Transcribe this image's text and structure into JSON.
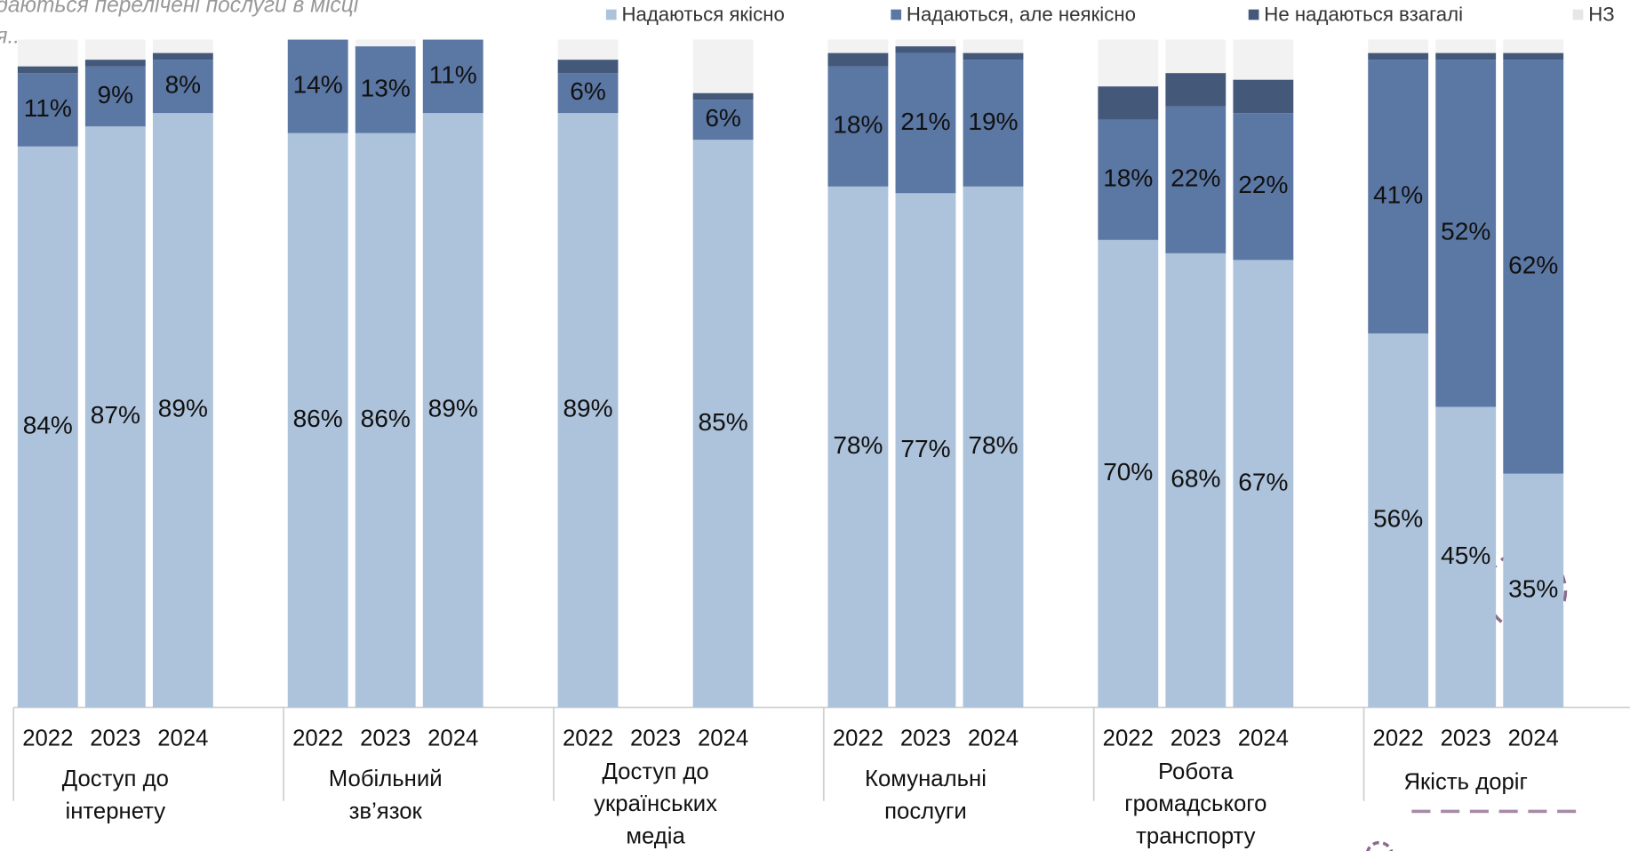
{
  "chart_data": {
    "type": "stacked-bar",
    "subtitle_lines": [
      "даються перелічені послуги в місці",
      "я..."
    ],
    "groups": [
      {
        "label_lines": [
          "Доступ до",
          "інтернету"
        ],
        "categories": [
          "2022",
          "2023",
          "2024"
        ]
      },
      {
        "label_lines": [
          "Мобільний",
          "зв’язок"
        ],
        "categories": [
          "2022",
          "2023",
          "2024"
        ]
      },
      {
        "label_lines": [
          "Доступ до",
          "українських",
          "медіа"
        ],
        "categories": [
          "2022",
          "2023",
          "2024"
        ]
      },
      {
        "label_lines": [
          "Комунальні",
          "послуги"
        ],
        "categories": [
          "2022",
          "2023",
          "2024"
        ]
      },
      {
        "label_lines": [
          "Робота",
          "громадського",
          "транспорту"
        ],
        "categories": [
          "2022",
          "2023",
          "2024"
        ]
      },
      {
        "label_lines": [
          "Якість доріг"
        ],
        "categories": [
          "2022",
          "2023",
          "2024"
        ]
      }
    ],
    "ylim": [
      0,
      100
    ],
    "series": [
      {
        "name": "Надаються якісно",
        "color": "#adc2db",
        "values": [
          84,
          87,
          89,
          86,
          86,
          89,
          89,
          null,
          85,
          78,
          77,
          78,
          70,
          68,
          67,
          56,
          45,
          35
        ],
        "value_labels": [
          "84%",
          "87%",
          "89%",
          "86%",
          "86%",
          "89%",
          "89%",
          null,
          "85%",
          "78%",
          "77%",
          "78%",
          "70%",
          "68%",
          "67%",
          "56%",
          "45%",
          "35%"
        ]
      },
      {
        "name": "Надаються, але неякісно",
        "color": "#5b77a3",
        "values": [
          11,
          9,
          8,
          14,
          13,
          11,
          6,
          null,
          6,
          18,
          21,
          19,
          18,
          22,
          22,
          41,
          52,
          62
        ],
        "value_labels": [
          "11%",
          "9%",
          "8%",
          "14%",
          "13%",
          "11%",
          "6%",
          null,
          "6%",
          "18%",
          "21%",
          "19%",
          "18%",
          "22%",
          "22%",
          "41%",
          "52%",
          "62%"
        ]
      },
      {
        "name": "Не надаються взагалі",
        "color": "#44587a",
        "values": [
          1,
          1,
          1,
          0,
          0,
          0,
          2,
          null,
          1,
          2,
          1,
          1,
          5,
          5,
          5,
          1,
          1,
          1
        ]
      },
      {
        "name": "НЗ",
        "color": "#f2f2f2",
        "values": [
          4,
          3,
          2,
          0,
          1,
          0,
          3,
          null,
          8,
          2,
          1,
          2,
          7,
          5,
          6,
          2,
          2,
          2
        ]
      }
    ]
  }
}
